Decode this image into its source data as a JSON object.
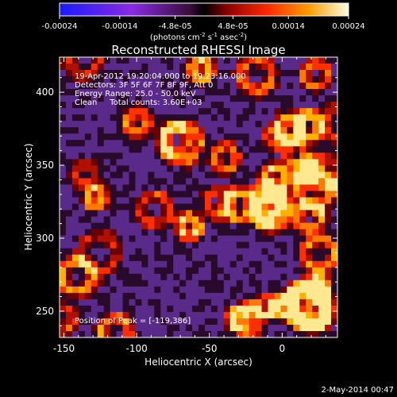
{
  "colorbar": {
    "ticks": [
      "-0.00024",
      "-0.00014",
      "-4.8e-05",
      "4.8e-05",
      "0.00014",
      "0.00024"
    ],
    "unit_main": "(photons cm",
    "unit_sup1": "-2",
    "unit_mid": " s",
    "unit_sup2": "-1",
    "unit_tail": " asec",
    "unit_sup3": "-2",
    "unit_close": ")",
    "range": [
      -0.00024,
      0.00024
    ]
  },
  "chart_data": {
    "type": "heatmap",
    "title": "Reconstructed RHESSI Image",
    "xlabel": "Heliocentric X (arcsec)",
    "ylabel": "Heliocentric Y (arcsec)",
    "xlim": [
      -153,
      38
    ],
    "ylim": [
      232,
      424
    ],
    "x_ticks": [
      "-150",
      "-100",
      "-50",
      "0"
    ],
    "y_ticks": [
      "250",
      "300",
      "350",
      "400"
    ],
    "info_lines": [
      "19-Apr-2012 19:20:04.000 to 19:23:16.000",
      "Detectors: 3F 5F 6F 7F 8F 9F, Att 0",
      "Energy Range: 25.0 - 50.0 keV",
      "Clean     Total counts: 3.60E+03"
    ],
    "peak_label": "Position of Peak = [-119,386]",
    "peak": [
      -119,
      386
    ],
    "colormap": "rainbow-blue-to-white"
  },
  "footer": {
    "date": "2-May-2014 00:47"
  }
}
